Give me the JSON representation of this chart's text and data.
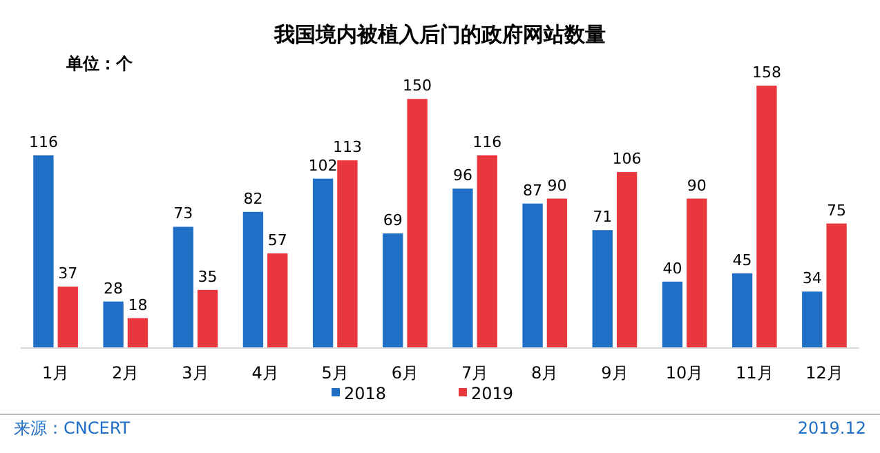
{
  "chart_data": {
    "type": "bar",
    "title": "我国境内被植入后门的政府网站数量",
    "categories": [
      "1月",
      "2月",
      "3月",
      "4月",
      "5月",
      "6月",
      "7月",
      "8月",
      "9月",
      "10月",
      "11月",
      "12月"
    ],
    "series": [
      {
        "name": "2018",
        "color": "#1f6fc6",
        "values": [
          116,
          28,
          73,
          82,
          102,
          69,
          96,
          87,
          71,
          40,
          45,
          34
        ]
      },
      {
        "name": "2019",
        "color": "#e8383d",
        "values": [
          37,
          18,
          35,
          57,
          113,
          150,
          116,
          90,
          106,
          90,
          158,
          75
        ]
      }
    ],
    "data_labels": true,
    "legend": "bottom",
    "annotations": [
      "单位：个",
      "来源：CNCERT",
      "2019.12"
    ]
  }
}
